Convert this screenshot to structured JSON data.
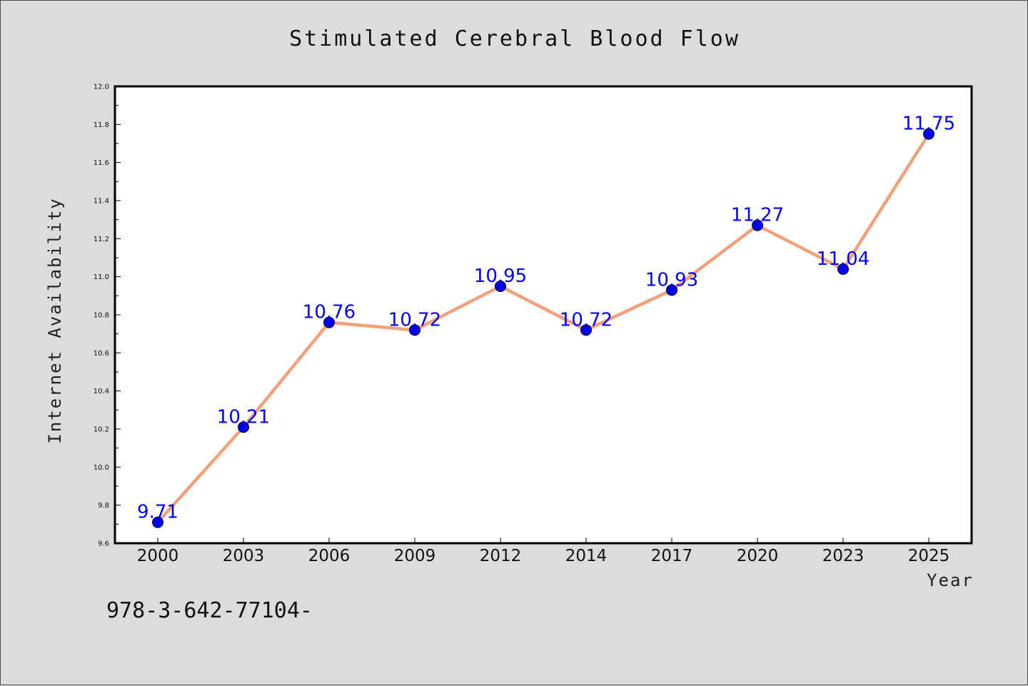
{
  "chart_data": {
    "type": "line",
    "title": "Stimulated Cerebral Blood Flow",
    "xlabel": "Year",
    "ylabel": "Internet Availability",
    "categories": [
      "2000",
      "2003",
      "2006",
      "2009",
      "2012",
      "2014",
      "2017",
      "2020",
      "2023",
      "2025"
    ],
    "series": [
      {
        "values": [
          9.71,
          10.21,
          10.76,
          10.72,
          10.95,
          10.72,
          10.93,
          11.27,
          11.04,
          11.75
        ],
        "labels": [
          "9.71",
          "10.21",
          "10.76",
          "10.72",
          "10.95",
          "10.72",
          "10.93",
          "11.27",
          "11.04",
          "11.75"
        ],
        "line_color": "#f4a07a",
        "marker_color": "#0000ee",
        "label_color": "#0000ff"
      }
    ],
    "ylim": [
      9.6,
      12.0
    ],
    "yticks": [
      "9.6",
      "9.8",
      "10.0",
      "10.2",
      "10.4",
      "10.6",
      "10.8",
      "11.0",
      "11.2",
      "11.4",
      "11.6",
      "11.8",
      "12.0"
    ],
    "grid": false,
    "legend": "none",
    "footnote": "978-3-642-77104-"
  }
}
